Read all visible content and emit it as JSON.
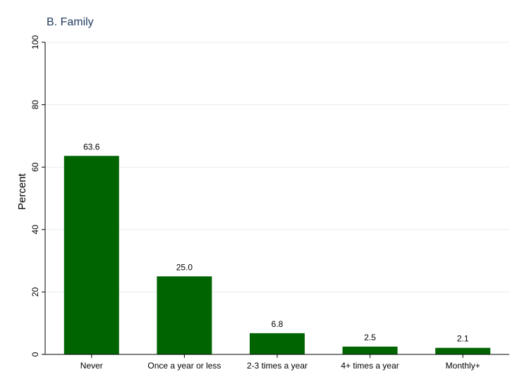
{
  "chart_data": {
    "type": "bar",
    "title": "B. Family",
    "ylabel": "Percent",
    "xlabel": "",
    "categories": [
      "Never",
      "Once a year or less",
      "2-3 times a year",
      "4+ times a year",
      "Monthly+"
    ],
    "values": [
      63.6,
      25.0,
      6.8,
      2.5,
      2.1
    ],
    "value_labels": [
      "63.6",
      "25.0",
      "6.8",
      "2.5",
      "2.1"
    ],
    "ylim": [
      0,
      100
    ],
    "yticks": [
      0,
      20,
      40,
      60,
      80,
      100
    ],
    "grid": true,
    "legend": "none",
    "bar_color": "#006400"
  }
}
